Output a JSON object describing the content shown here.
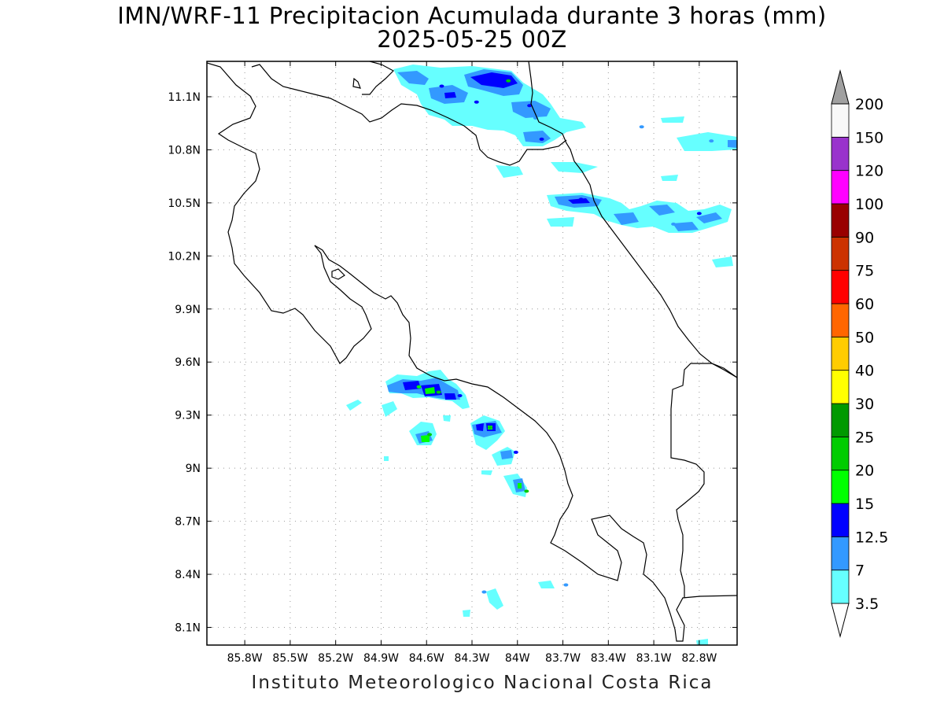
{
  "title": {
    "line1": "IMN/WRF-11 Precipitacion Acumulada durante 3 horas (mm)",
    "line2": "2025-05-25 00Z"
  },
  "footer": "Instituto Meteorologico Nacional Costa Rica",
  "map": {
    "lon_range": [
      -86.05,
      -82.55
    ],
    "lat_range": [
      8.0,
      11.3
    ],
    "grid": "dotted",
    "x_ticks": [
      {
        "value": -85.8,
        "label": "85.8W"
      },
      {
        "value": -85.5,
        "label": "85.5W"
      },
      {
        "value": -85.2,
        "label": "85.2W"
      },
      {
        "value": -84.9,
        "label": "84.9W"
      },
      {
        "value": -84.6,
        "label": "84.6W"
      },
      {
        "value": -84.3,
        "label": "84.3W"
      },
      {
        "value": -84.0,
        "label": "84W"
      },
      {
        "value": -83.7,
        "label": "83.7W"
      },
      {
        "value": -83.4,
        "label": "83.4W"
      },
      {
        "value": -83.1,
        "label": "83.1W"
      },
      {
        "value": -82.8,
        "label": "82.8W"
      }
    ],
    "y_ticks": [
      {
        "value": 11.1,
        "label": "11.1N"
      },
      {
        "value": 10.8,
        "label": "10.8N"
      },
      {
        "value": 10.5,
        "label": "10.5N"
      },
      {
        "value": 10.2,
        "label": "10.2N"
      },
      {
        "value": 9.9,
        "label": "9.9N"
      },
      {
        "value": 9.6,
        "label": "9.6N"
      },
      {
        "value": 9.3,
        "label": "9.3N"
      },
      {
        "value": 9.0,
        "label": "9N"
      },
      {
        "value": 8.7,
        "label": "8.7N"
      },
      {
        "value": 8.4,
        "label": "8.4N"
      },
      {
        "value": 8.1,
        "label": "8.1N"
      }
    ]
  },
  "legend": {
    "levels": [
      {
        "label": "3.5",
        "color": "#66ffff"
      },
      {
        "label": "7",
        "color": "#3399ff"
      },
      {
        "label": "12.5",
        "color": "#0000ff"
      },
      {
        "label": "15",
        "color": "#00ff00"
      },
      {
        "label": "20",
        "color": "#00cc00"
      },
      {
        "label": "25",
        "color": "#009900"
      },
      {
        "label": "30",
        "color": "#ffff00"
      },
      {
        "label": "40",
        "color": "#ffcc00"
      },
      {
        "label": "50",
        "color": "#ff6600"
      },
      {
        "label": "60",
        "color": "#ff0000"
      },
      {
        "label": "75",
        "color": "#cc3300"
      },
      {
        "label": "90",
        "color": "#990000"
      },
      {
        "label": "100",
        "color": "#ff00ff"
      },
      {
        "label": "120",
        "color": "#9933cc"
      },
      {
        "label": "150",
        "color": "#f8f8f8"
      },
      {
        "label": "200",
        "color": "#a0a0a0"
      }
    ]
  },
  "precip_cells": [
    {
      "lon": -84.06,
      "lat": 11.19,
      "level": 4
    },
    {
      "lon": -84.5,
      "lat": 11.16,
      "level": 2
    },
    {
      "lon": -84.27,
      "lat": 11.07,
      "level": 2
    },
    {
      "lon": -83.92,
      "lat": 11.05,
      "level": 2
    },
    {
      "lon": -83.88,
      "lat": 10.98,
      "level": 1
    },
    {
      "lon": -83.84,
      "lat": 10.86,
      "level": 2
    },
    {
      "lon": -83.18,
      "lat": 10.93,
      "level": 1
    },
    {
      "lon": -82.72,
      "lat": 10.85,
      "level": 1
    },
    {
      "lon": -83.58,
      "lat": 10.52,
      "level": 2
    },
    {
      "lon": -83.32,
      "lat": 10.43,
      "level": 1
    },
    {
      "lon": -82.97,
      "lat": 10.38,
      "level": 1
    },
    {
      "lon": -82.8,
      "lat": 10.44,
      "level": 2
    },
    {
      "lon": -84.65,
      "lat": 9.46,
      "level": 3
    },
    {
      "lon": -84.52,
      "lat": 9.43,
      "level": 4
    },
    {
      "lon": -84.38,
      "lat": 9.41,
      "level": 2
    },
    {
      "lon": -84.58,
      "lat": 9.19,
      "level": 4
    },
    {
      "lon": -84.18,
      "lat": 9.23,
      "level": 4
    },
    {
      "lon": -84.01,
      "lat": 9.09,
      "level": 2
    },
    {
      "lon": -83.94,
      "lat": 8.87,
      "level": 4
    },
    {
      "lon": -84.22,
      "lat": 8.3,
      "level": 1
    },
    {
      "lon": -83.68,
      "lat": 8.34,
      "level": 1
    }
  ]
}
